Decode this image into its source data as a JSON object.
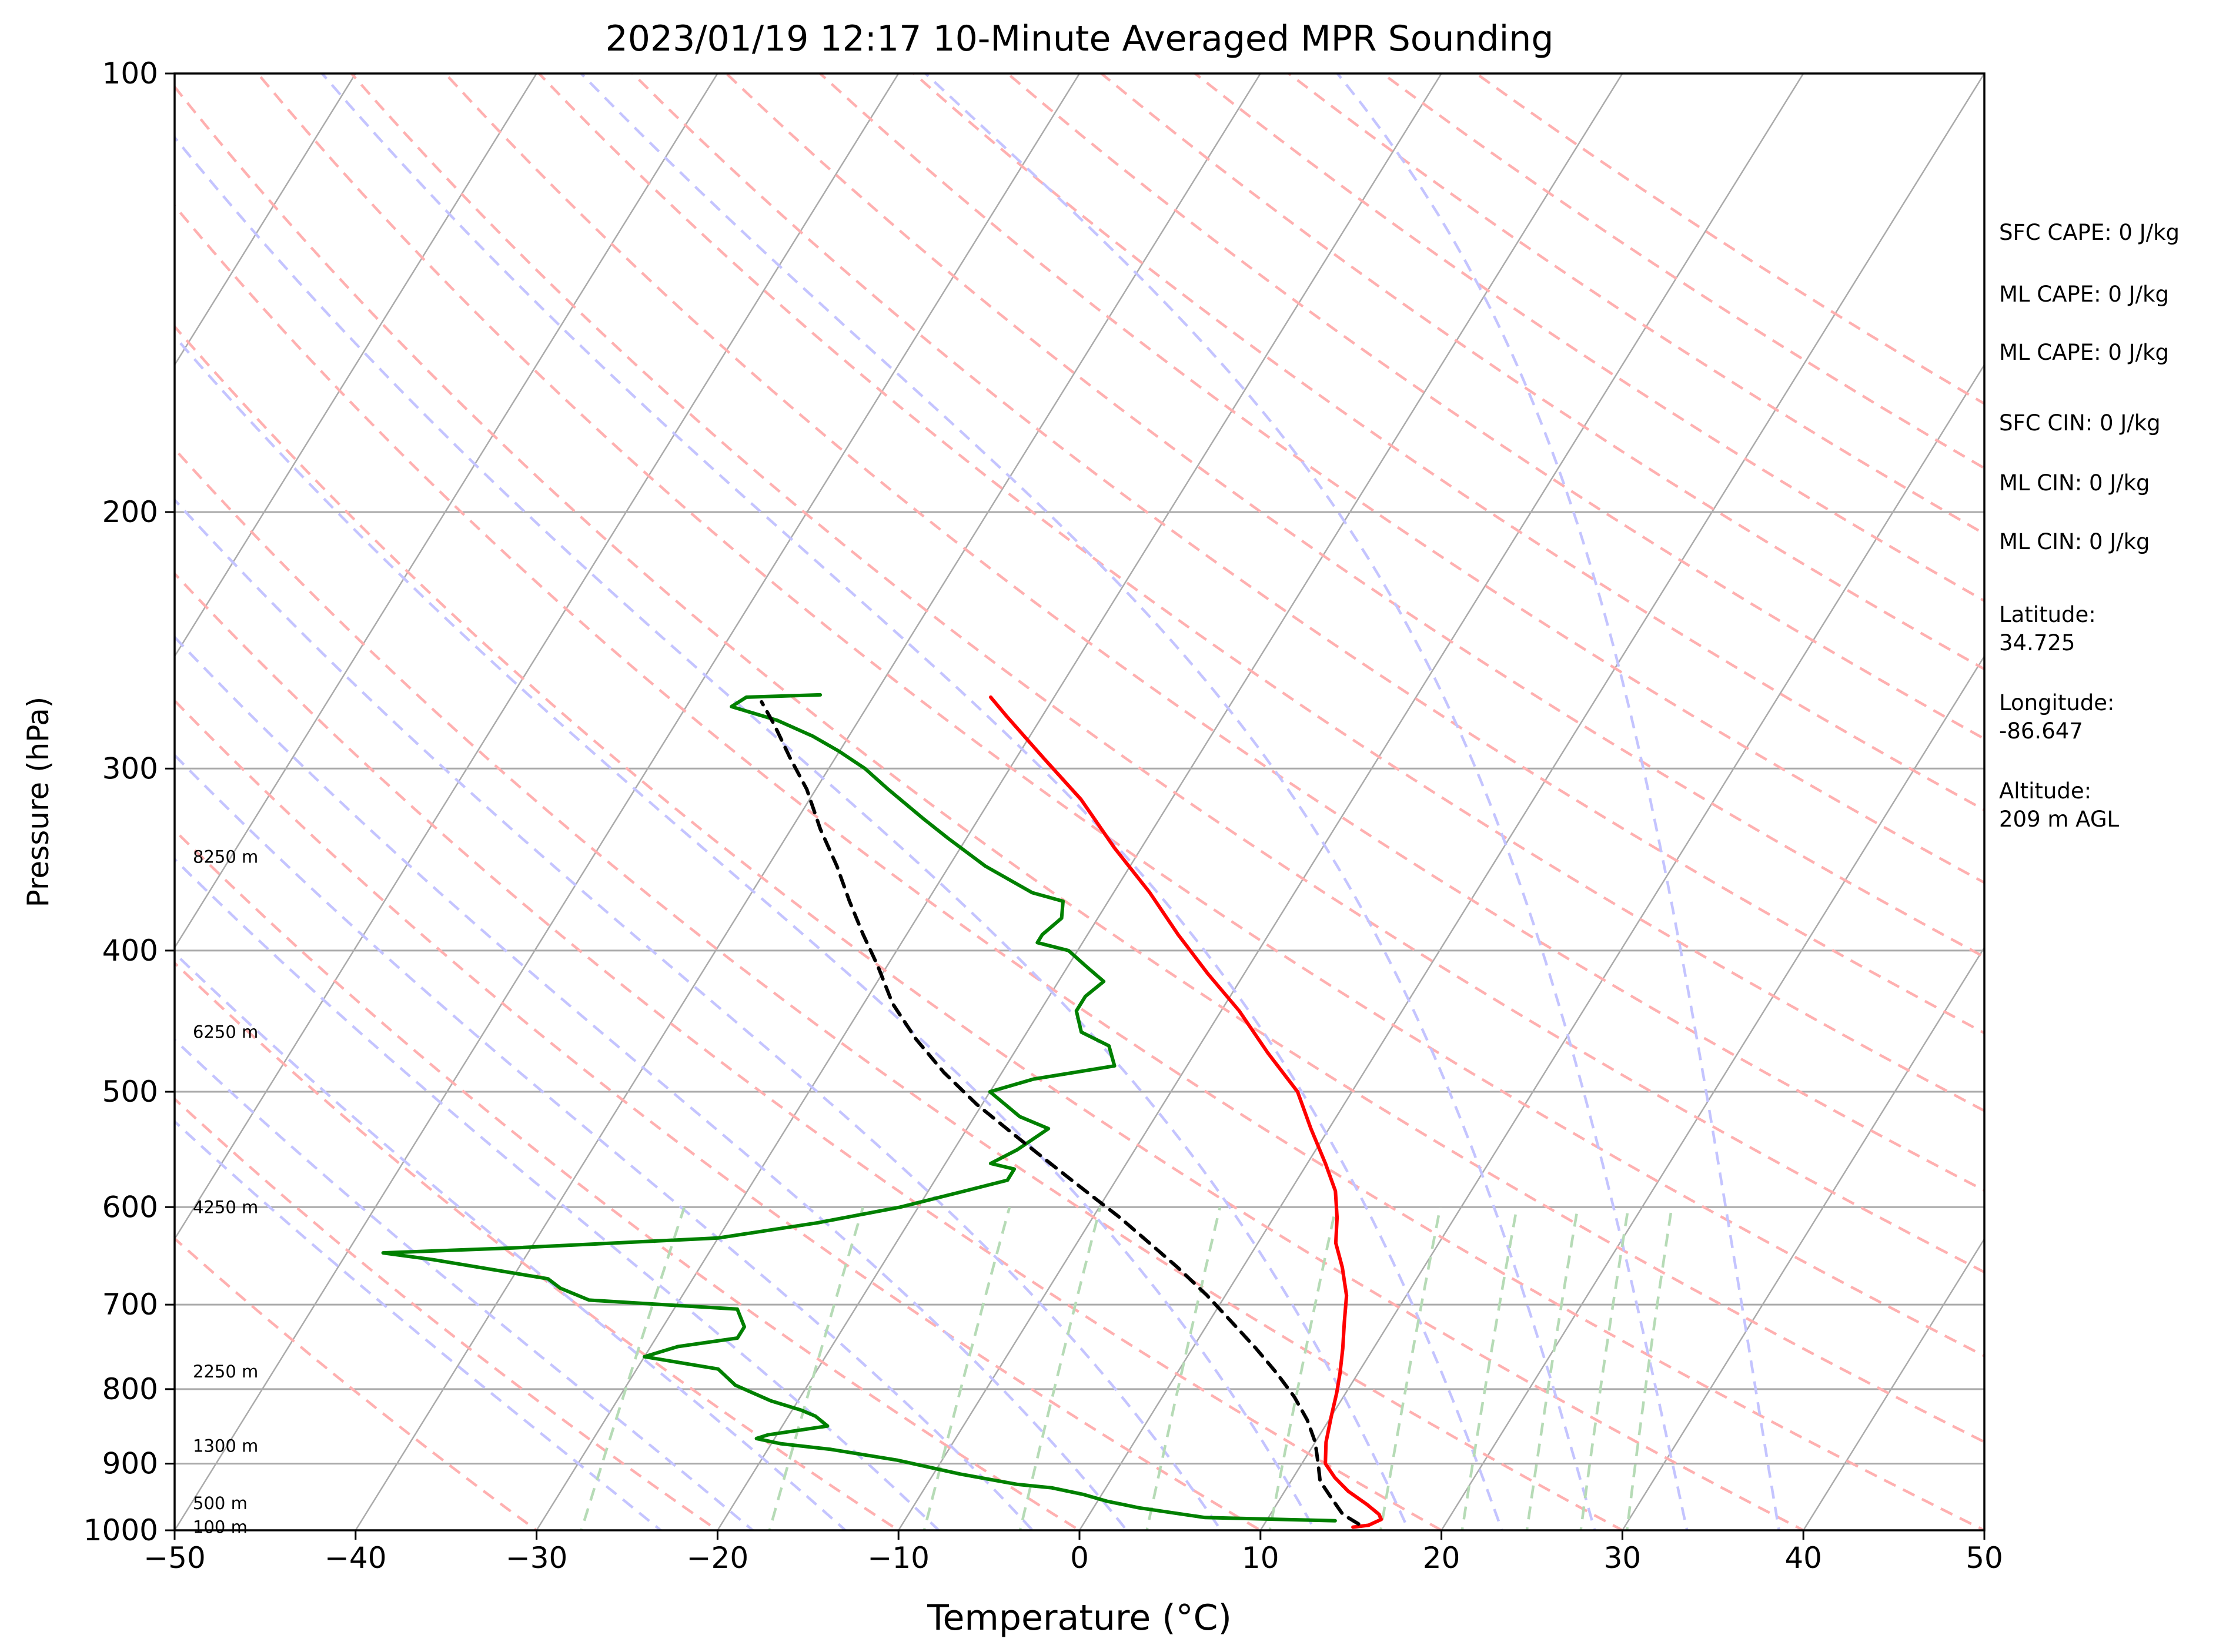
{
  "chart_data": {
    "type": "line",
    "title": "2023/01/19 12:17 10-Minute Averaged MPR Sounding",
    "xlabel": "Temperature (°C)",
    "ylabel": "Pressure (hPa)",
    "xlim": [
      -50,
      50
    ],
    "ylim": [
      1000,
      100
    ],
    "y_scale": "log",
    "x_ticks": [
      "−50",
      "−40",
      "−30",
      "−20",
      "−10",
      "0",
      "10",
      "20",
      "30",
      "40",
      "50"
    ],
    "y_ticks": [
      "100",
      "200",
      "300",
      "400",
      "500",
      "600",
      "700",
      "800",
      "900",
      "1000"
    ],
    "y_tick_values": [
      100,
      200,
      300,
      400,
      500,
      600,
      700,
      800,
      900,
      1000
    ],
    "grid": true,
    "height_labels": [
      {
        "text": "8250 m",
        "p": 345
      },
      {
        "text": "6250 m",
        "p": 455
      },
      {
        "text": "4250 m",
        "p": 600
      },
      {
        "text": "2250 m",
        "p": 778
      },
      {
        "text": "1300 m",
        "p": 875
      },
      {
        "text": "500 m",
        "p": 958
      },
      {
        "text": "100 m",
        "p": 995
      }
    ],
    "series": [
      {
        "color": "#ff0000",
        "points": [
          [
            15.0,
            995
          ],
          [
            15.8,
            992
          ],
          [
            16.3,
            983
          ],
          [
            16.0,
            975
          ],
          [
            15.0,
            960
          ],
          [
            13.5,
            940
          ],
          [
            12.3,
            920
          ],
          [
            11.3,
            900
          ],
          [
            10.6,
            870
          ],
          [
            10.0,
            835
          ],
          [
            9.5,
            805
          ],
          [
            9.0,
            780
          ],
          [
            8.3,
            750
          ],
          [
            7.5,
            720
          ],
          [
            6.7,
            690
          ],
          [
            5.5,
            660
          ],
          [
            4.3,
            635
          ],
          [
            3.5,
            610
          ],
          [
            2.5,
            585
          ],
          [
            1.0,
            560
          ],
          [
            -1.0,
            530
          ],
          [
            -3.0,
            500
          ],
          [
            -6.0,
            470
          ],
          [
            -9.0,
            440
          ],
          [
            -12.0,
            415
          ],
          [
            -15.0,
            390
          ],
          [
            -18.0,
            365
          ],
          [
            -21.5,
            340
          ],
          [
            -25.0,
            315
          ],
          [
            -28.5,
            295
          ],
          [
            -32.0,
            276
          ],
          [
            -33.5,
            268
          ]
        ]
      },
      {
        "color": "#008000",
        "points": [
          [
            13.8,
            985
          ],
          [
            6.5,
            980
          ],
          [
            2.5,
            965
          ],
          [
            0.5,
            955
          ],
          [
            -1.0,
            945
          ],
          [
            -3.0,
            935
          ],
          [
            -5.0,
            930
          ],
          [
            -8.5,
            915
          ],
          [
            -12.5,
            895
          ],
          [
            -16.5,
            880
          ],
          [
            -19.5,
            872
          ],
          [
            -21.0,
            865
          ],
          [
            -20.5,
            860
          ],
          [
            -17.5,
            848
          ],
          [
            -18.5,
            835
          ],
          [
            -19.5,
            827
          ],
          [
            -21.5,
            815
          ],
          [
            -24.0,
            795
          ],
          [
            -25.5,
            775
          ],
          [
            -30.0,
            760
          ],
          [
            -28.5,
            748
          ],
          [
            -25.5,
            738
          ],
          [
            -25.5,
            725
          ],
          [
            -26.5,
            705
          ],
          [
            -35.0,
            695
          ],
          [
            -37.0,
            682
          ],
          [
            -38.0,
            672
          ],
          [
            -45.0,
            652
          ],
          [
            -48.0,
            645
          ],
          [
            -41.0,
            640
          ],
          [
            -30.0,
            630
          ],
          [
            -25.0,
            615
          ],
          [
            -21.0,
            600
          ],
          [
            -18.0,
            585
          ],
          [
            -16.0,
            575
          ],
          [
            -16.0,
            565
          ],
          [
            -17.5,
            560
          ],
          [
            -16.5,
            548
          ],
          [
            -15.5,
            530
          ],
          [
            -17.5,
            520
          ],
          [
            -20.0,
            500
          ],
          [
            -18.0,
            490
          ],
          [
            -14.0,
            480
          ],
          [
            -15.0,
            465
          ],
          [
            -17.0,
            455
          ],
          [
            -18.0,
            440
          ],
          [
            -18.0,
            430
          ],
          [
            -17.5,
            420
          ],
          [
            -19.0,
            410
          ],
          [
            -20.5,
            400
          ],
          [
            -22.5,
            395
          ],
          [
            -22.5,
            390
          ],
          [
            -22.0,
            380
          ],
          [
            -22.5,
            370
          ],
          [
            -24.5,
            365
          ],
          [
            -28.0,
            350
          ],
          [
            -31.0,
            335
          ],
          [
            -33.0,
            325
          ],
          [
            -36.0,
            310
          ],
          [
            -38.0,
            300
          ],
          [
            -40.0,
            292
          ],
          [
            -42.0,
            285
          ],
          [
            -44.5,
            278
          ],
          [
            -47.5,
            272
          ],
          [
            -47.0,
            268
          ],
          [
            -43.0,
            267
          ]
        ]
      },
      {
        "color": "#000000",
        "dashed": true,
        "points": [
          [
            15.2,
            990
          ],
          [
            14.0,
            975
          ],
          [
            12.8,
            950
          ],
          [
            11.6,
            925
          ],
          [
            10.9,
            900
          ],
          [
            10.0,
            870
          ],
          [
            8.8,
            840
          ],
          [
            7.3,
            810
          ],
          [
            5.5,
            780
          ],
          [
            3.5,
            750
          ],
          [
            1.3,
            720
          ],
          [
            -1.0,
            690
          ],
          [
            -3.6,
            660
          ],
          [
            -6.0,
            635
          ],
          [
            -8.5,
            610
          ],
          [
            -11.3,
            585
          ],
          [
            -14.2,
            560
          ],
          [
            -17.2,
            535
          ],
          [
            -20.3,
            510
          ],
          [
            -23.2,
            485
          ],
          [
            -25.9,
            460
          ],
          [
            -28.4,
            435
          ],
          [
            -30.5,
            410
          ],
          [
            -32.4,
            390
          ],
          [
            -34.3,
            370
          ],
          [
            -36.2,
            350
          ],
          [
            -38.4,
            330
          ],
          [
            -40.5,
            310
          ],
          [
            -42.5,
            295
          ],
          [
            -44.5,
            280
          ],
          [
            -46.0,
            270
          ]
        ]
      }
    ],
    "background": {
      "isotherm_color": "#aaaaaa",
      "dry_adiabat_color": "#ffb0b0",
      "moist_adiabat_color": "#c4c4ff",
      "mixing_ratio_color": "#b6dbb6"
    }
  },
  "side_panel": {
    "sfc_cape": "SFC CAPE: 0 J/kg",
    "ml_cape_1": "ML CAPE: 0 J/kg",
    "ml_cape_2": "ML CAPE: 0 J/kg",
    "sfc_cin": "SFC CIN: 0 J/kg",
    "ml_cin_1": "ML CIN: 0 J/kg",
    "ml_cin_2": "ML CIN: 0 J/kg",
    "latitude_label": "Latitude:",
    "latitude_value": "34.725",
    "longitude_label": "Longitude:",
    "longitude_value": "-86.647",
    "altitude_label": "Altitude:",
    "altitude_value": "209 m AGL"
  }
}
